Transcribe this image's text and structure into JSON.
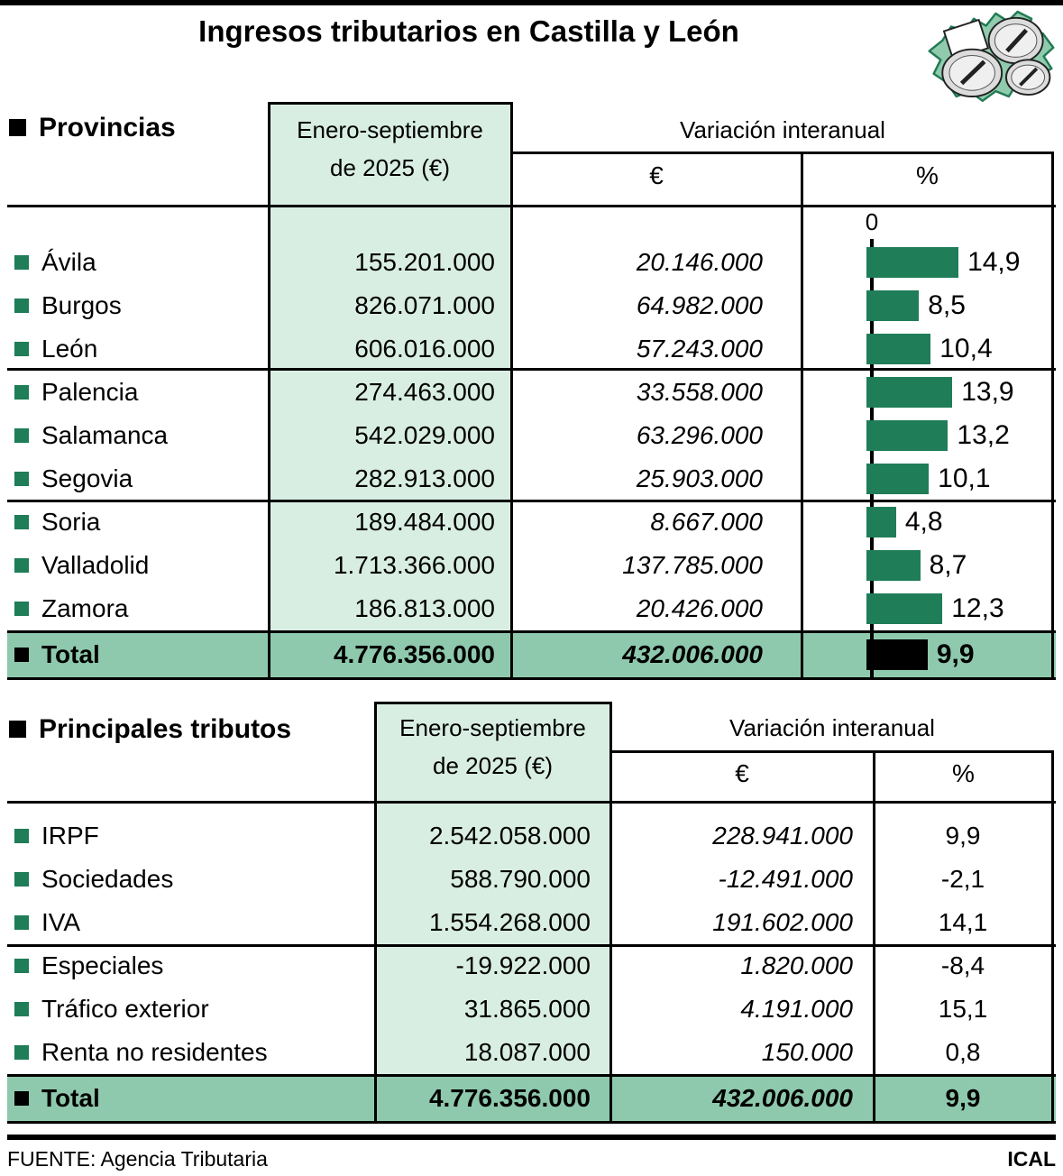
{
  "page": {
    "title": "Ingresos tributarios en Castilla y León",
    "source": "FUENTE: Agencia Tributaria",
    "credit": "ICAL"
  },
  "icon": {
    "name": "castilla-y-leon-map-with-coins"
  },
  "colors": {
    "accent_green": "#1F7D57",
    "light_green": "#D9EEE3",
    "total_band_green": "#8FC9AD",
    "total_bar_black": "#000000",
    "map_green": "#90CBAE",
    "map_outline": "#217A54"
  },
  "provincias": {
    "section_label": "Provincias",
    "period_line1": "Enero-septiembre",
    "period_line2": "de 2025 (€)",
    "variation_header": "Variación interanual",
    "euro_header": "€",
    "pct_header": "%",
    "axis_zero_label": "0",
    "rows": [
      {
        "name": "Ávila",
        "amount": "155.201.000",
        "variation": "20.146.000",
        "pct_label": "14,9",
        "pct_value": 14.9
      },
      {
        "name": "Burgos",
        "amount": "826.071.000",
        "variation": "64.982.000",
        "pct_label": "8,5",
        "pct_value": 8.5
      },
      {
        "name": "León",
        "amount": "606.016.000",
        "variation": "57.243.000",
        "pct_label": "10,4",
        "pct_value": 10.4
      },
      {
        "name": "Palencia",
        "amount": "274.463.000",
        "variation": "33.558.000",
        "pct_label": "13,9",
        "pct_value": 13.9
      },
      {
        "name": "Salamanca",
        "amount": "542.029.000",
        "variation": "63.296.000",
        "pct_label": "13,2",
        "pct_value": 13.2
      },
      {
        "name": "Segovia",
        "amount": "282.913.000",
        "variation": "25.903.000",
        "pct_label": "10,1",
        "pct_value": 10.1
      },
      {
        "name": "Soria",
        "amount": "189.484.000",
        "variation": "8.667.000",
        "pct_label": "4,8",
        "pct_value": 4.8
      },
      {
        "name": "Valladolid",
        "amount": "1.713.366.000",
        "variation": "137.785.000",
        "pct_label": "8,7",
        "pct_value": 8.7
      },
      {
        "name": "Zamora",
        "amount": "186.813.000",
        "variation": "20.426.000",
        "pct_label": "12,3",
        "pct_value": 12.3
      }
    ],
    "total": {
      "name": "Total",
      "amount": "4.776.356.000",
      "variation": "432.006.000",
      "pct_label": "9,9",
      "pct_value": 9.9
    }
  },
  "tributos": {
    "section_label": "Principales tributos",
    "period_line1": "Enero-septiembre",
    "period_line2": "de 2025 (€)",
    "variation_header": "Variación interanual",
    "euro_header": "€",
    "pct_header": "%",
    "rows": [
      {
        "name": "IRPF",
        "amount": "2.542.058.000",
        "variation": "228.941.000",
        "pct": "9,9"
      },
      {
        "name": "Sociedades",
        "amount": "588.790.000",
        "variation": "-12.491.000",
        "pct": "-2,1"
      },
      {
        "name": "IVA",
        "amount": "1.554.268.000",
        "variation": "191.602.000",
        "pct": "14,1"
      },
      {
        "name": "Especiales",
        "amount": "-19.922.000",
        "variation": "1.820.000",
        "pct": "-8,4"
      },
      {
        "name": "Tráfico exterior",
        "amount": "31.865.000",
        "variation": "4.191.000",
        "pct": "15,1"
      },
      {
        "name": "Renta no residentes",
        "amount": "18.087.000",
        "variation": "150.000",
        "pct": "0,8"
      }
    ],
    "total": {
      "name": "Total",
      "amount": "4.776.356.000",
      "variation": "432.006.000",
      "pct": "9,9"
    }
  },
  "chart_data": [
    {
      "type": "bar",
      "orientation": "horizontal",
      "title": "Ingresos tributarios en Castilla y León — Provincias",
      "categories": [
        "Ávila",
        "Burgos",
        "León",
        "Palencia",
        "Salamanca",
        "Segovia",
        "Soria",
        "Valladolid",
        "Zamora",
        "Total"
      ],
      "series": [
        {
          "name": "Enero-septiembre de 2025 (€)",
          "values": [
            155201000,
            826071000,
            606016000,
            274463000,
            542029000,
            282913000,
            189484000,
            1713366000,
            186813000,
            4776356000
          ]
        },
        {
          "name": "Variación interanual (€)",
          "values": [
            20146000,
            64982000,
            57243000,
            33558000,
            63296000,
            25903000,
            8667000,
            137785000,
            20426000,
            432006000
          ]
        },
        {
          "name": "Variación interanual (%)",
          "values": [
            14.9,
            8.5,
            10.4,
            13.9,
            13.2,
            10.1,
            4.8,
            8.7,
            12.3,
            9.9
          ]
        }
      ],
      "xlabel": "Variación interanual (%)",
      "xlim": [
        0,
        15.5
      ],
      "bar_color": "#1F7D57",
      "total_bar_color": "#000000",
      "axis_zero_label": "0",
      "grid": false,
      "legend_position": "none"
    },
    {
      "type": "table",
      "title": "Principales tributos",
      "columns": [
        "Principales tributos",
        "Enero-septiembre de 2025 (€)",
        "Variación interanual €",
        "Variación interanual %"
      ],
      "categories": [
        "IRPF",
        "Sociedades",
        "IVA",
        "Especiales",
        "Tráfico exterior",
        "Renta no residentes",
        "Total"
      ],
      "series": [
        {
          "name": "Enero-septiembre de 2025 (€)",
          "values": [
            2542058000,
            588790000,
            1554268000,
            -19922000,
            31865000,
            18087000,
            4776356000
          ]
        },
        {
          "name": "Variación interanual (€)",
          "values": [
            228941000,
            -12491000,
            191602000,
            1820000,
            4191000,
            150000,
            432006000
          ]
        },
        {
          "name": "Variación interanual (%)",
          "values": [
            9.9,
            -2.1,
            14.1,
            -8.4,
            15.1,
            0.8,
            9.9
          ]
        }
      ]
    }
  ]
}
